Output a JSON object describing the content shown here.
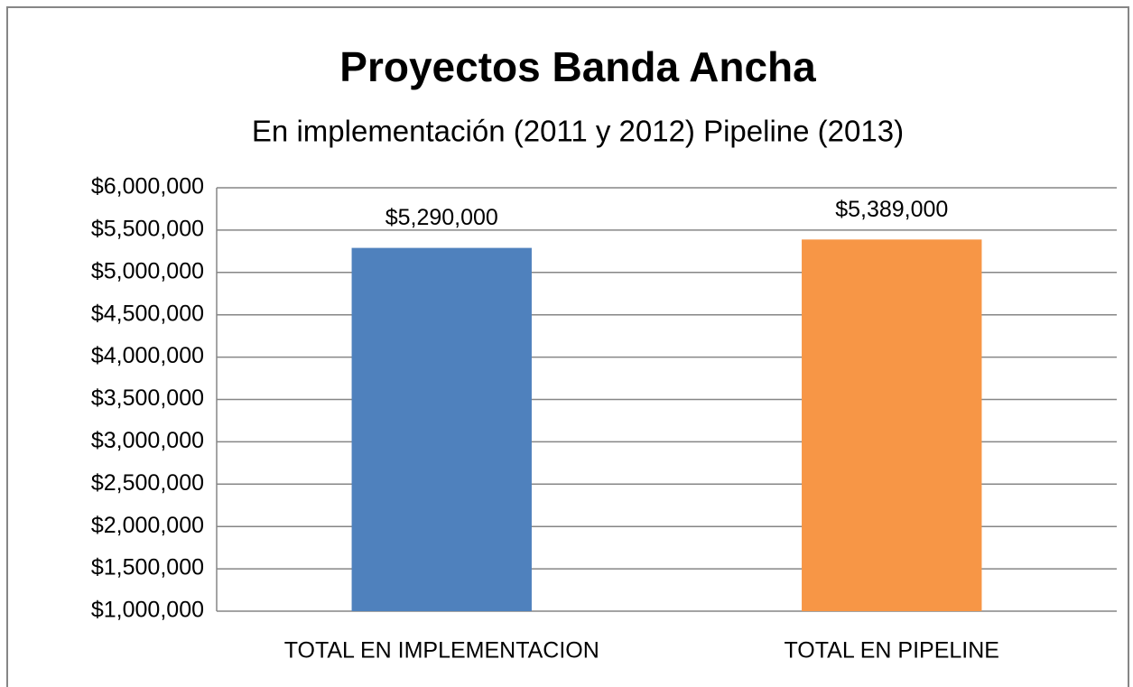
{
  "chart_data": {
    "type": "bar",
    "title": "Proyectos Banda Ancha",
    "subtitle": "En implementación (2011 y 2012) Pipeline (2013)",
    "categories": [
      "TOTAL EN IMPLEMENTACION",
      "TOTAL EN PIPELINE"
    ],
    "values": [
      5290000,
      5389000
    ],
    "value_labels": [
      "$5,290,000",
      "$5,389,000"
    ],
    "colors": [
      "#4f81bd",
      "#f79646"
    ],
    "ylim": [
      1000000,
      6000000
    ],
    "yticks": [
      {
        "value": 1000000,
        "label": "$1,000,000"
      },
      {
        "value": 1500000,
        "label": "$1,500,000"
      },
      {
        "value": 2000000,
        "label": "$2,000,000"
      },
      {
        "value": 2500000,
        "label": "$2,500,000"
      },
      {
        "value": 3000000,
        "label": "$3,000,000"
      },
      {
        "value": 3500000,
        "label": "$3,500,000"
      },
      {
        "value": 4000000,
        "label": "$4,000,000"
      },
      {
        "value": 4500000,
        "label": "$4,500,000"
      },
      {
        "value": 5000000,
        "label": "$5,000,000"
      },
      {
        "value": 5500000,
        "label": "$5,500,000"
      },
      {
        "value": 6000000,
        "label": "$6,000,000"
      }
    ],
    "grid": true
  }
}
